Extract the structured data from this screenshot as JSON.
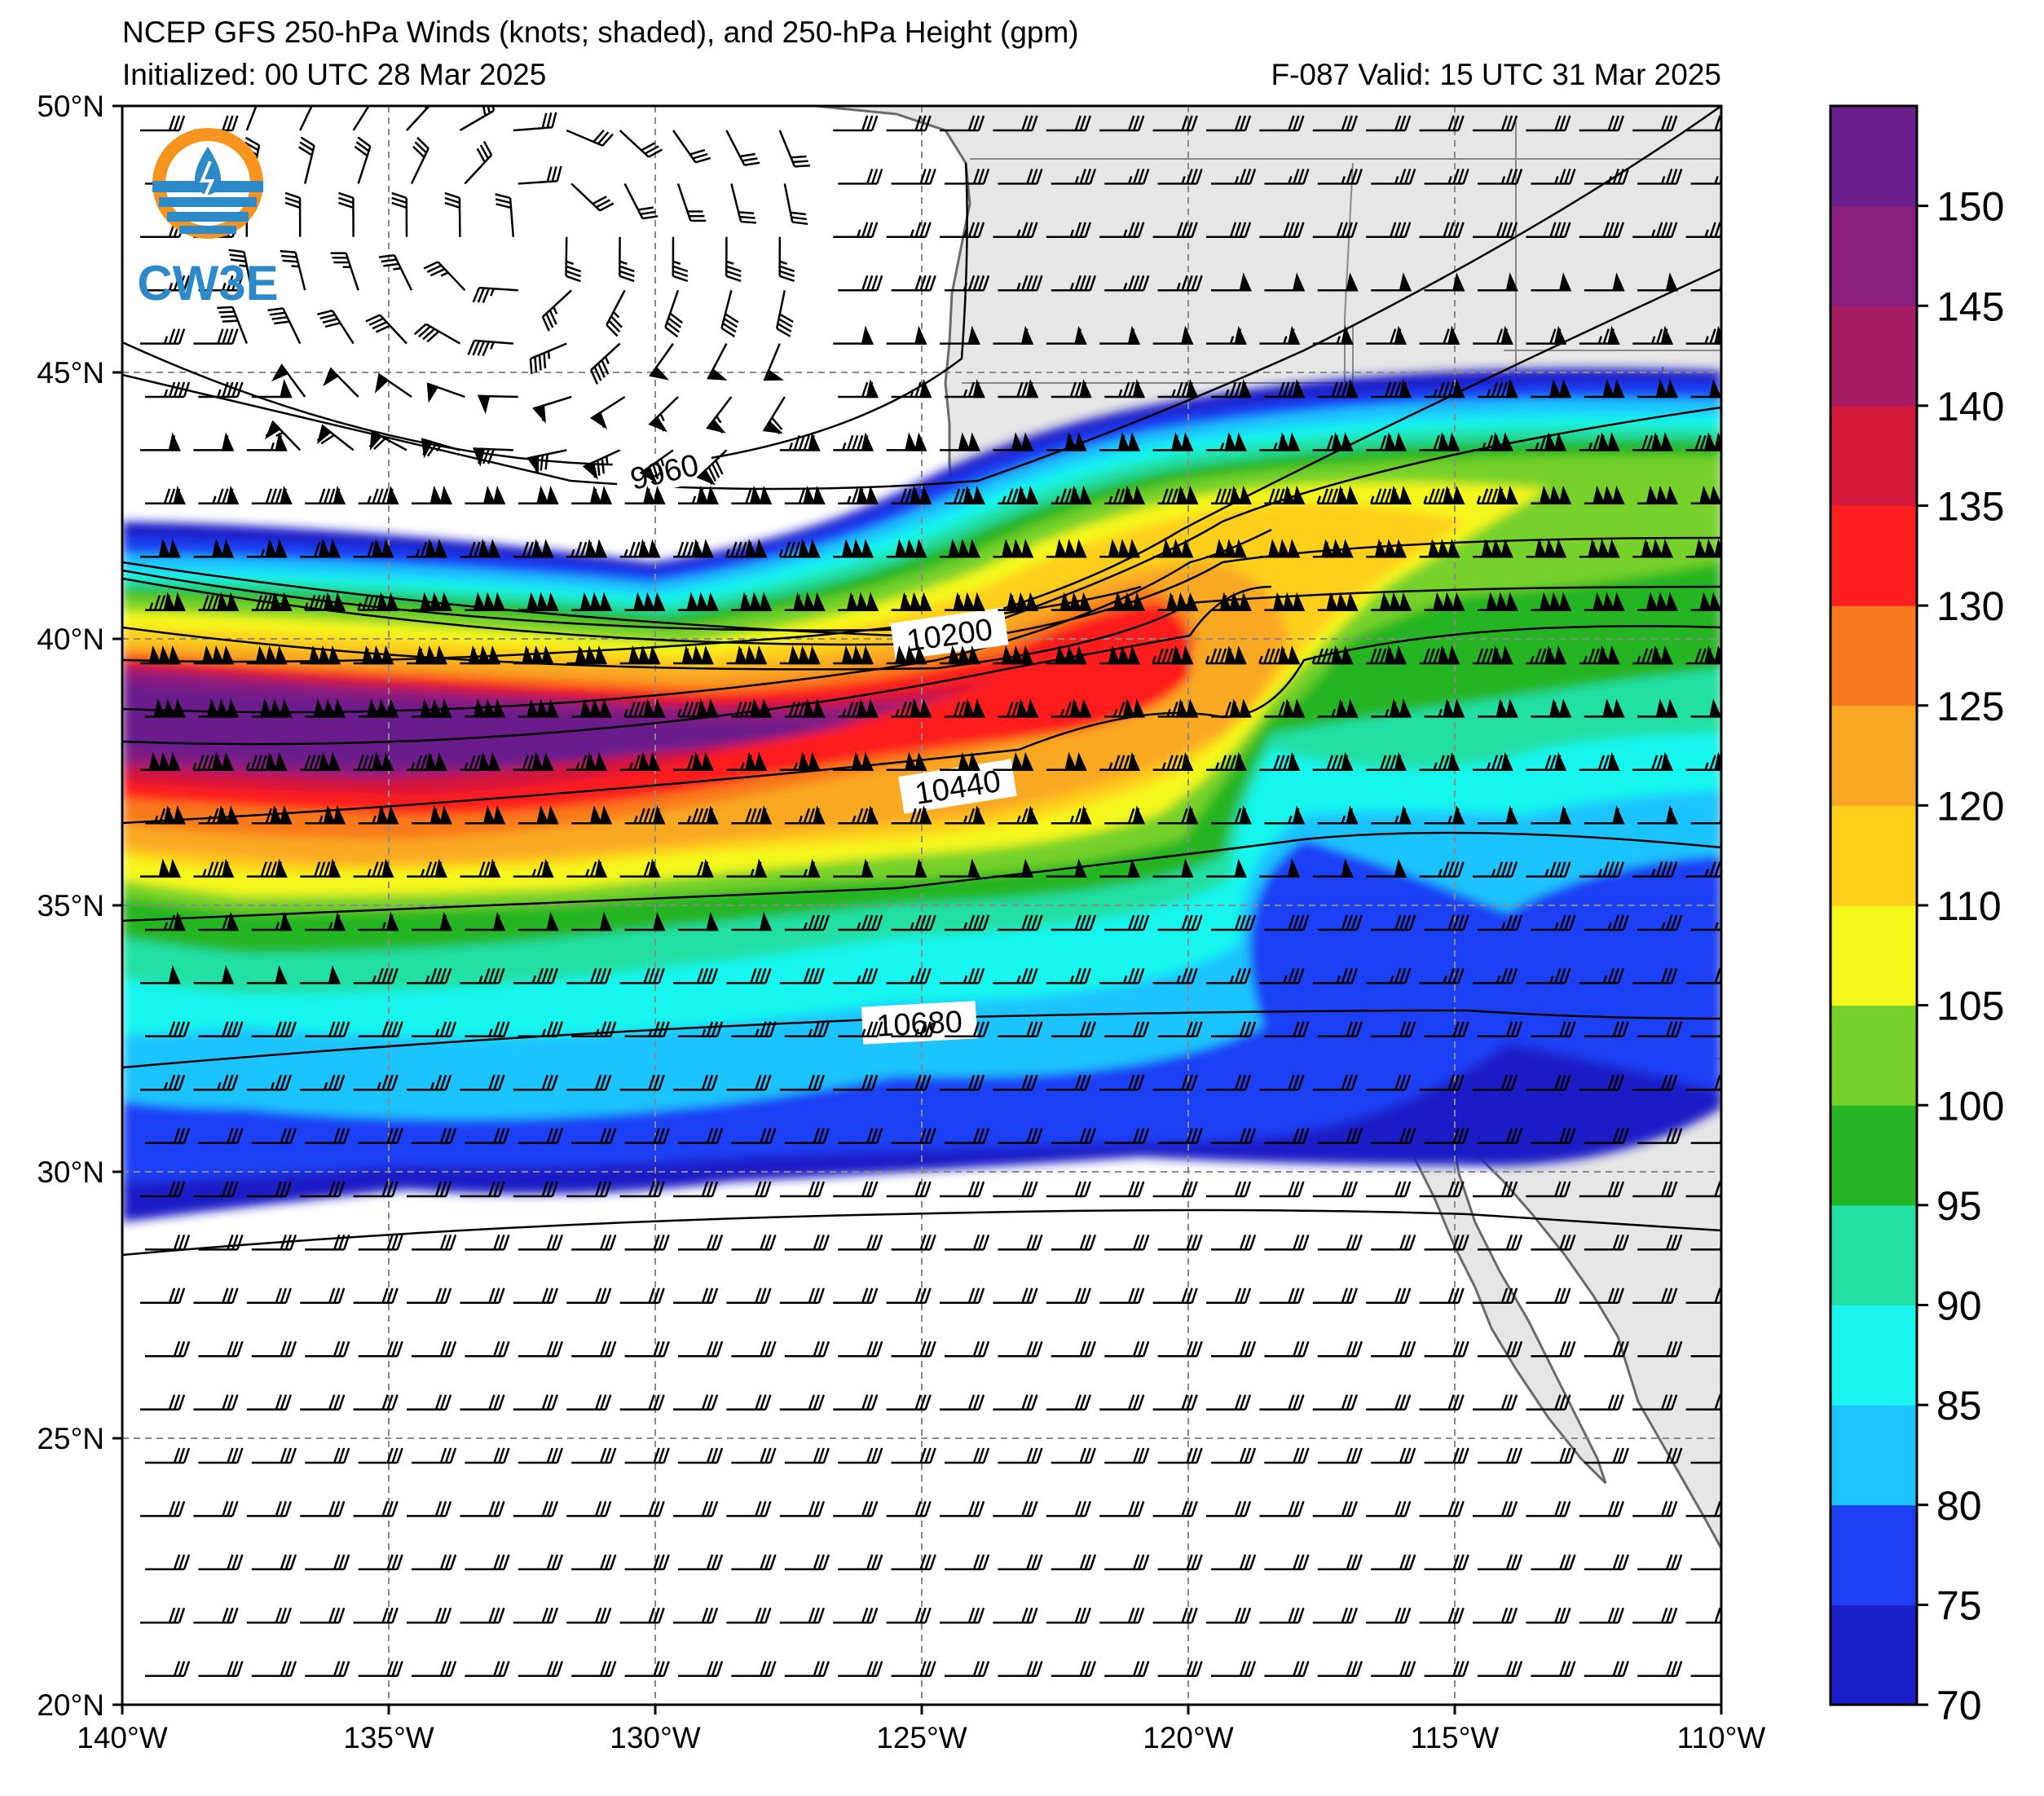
{
  "header": {
    "title": "NCEP GFS 250-hPa Winds (knots; shaded), and 250-hPa Height (gpm)",
    "initialized": "Initialized: 00 UTC 28 Mar 2025",
    "valid": "F-087  Valid: 15 UTC 31 Mar 2025"
  },
  "logo": {
    "text": "CW3E"
  },
  "map": {
    "lon_range": [
      -140,
      -110
    ],
    "lat_range": [
      20,
      50
    ],
    "lon_ticks": [
      "140°W",
      "135°W",
      "130°W",
      "125°W",
      "120°W",
      "115°W",
      "110°W"
    ],
    "lat_ticks": [
      "20°N",
      "25°N",
      "30°N",
      "35°N",
      "40°N",
      "45°N",
      "50°N"
    ],
    "grid": "dashed",
    "land_color": "#e6e6e6",
    "ocean_color": "#ffffff"
  },
  "height_contours": [
    {
      "label": "9960",
      "value": 9960
    },
    {
      "label": "10200",
      "value": 10200
    },
    {
      "label": "10440",
      "value": 10440
    },
    {
      "label": "10680",
      "value": 10680
    }
  ],
  "colorbar": {
    "ticks": [
      "70",
      "75",
      "80",
      "85",
      "90",
      "95",
      "100",
      "105",
      "110",
      "120",
      "125",
      "130",
      "135",
      "140",
      "145",
      "150"
    ],
    "bins": [
      {
        "from": 70,
        "to": 75,
        "color": "#1c1fc7"
      },
      {
        "from": 75,
        "to": 80,
        "color": "#1f3ff5"
      },
      {
        "from": 80,
        "to": 85,
        "color": "#1ec4ff"
      },
      {
        "from": 85,
        "to": 90,
        "color": "#19f5ee"
      },
      {
        "from": 90,
        "to": 95,
        "color": "#22e0a4"
      },
      {
        "from": 95,
        "to": 100,
        "color": "#25b524"
      },
      {
        "from": 100,
        "to": 105,
        "color": "#76d22a"
      },
      {
        "from": 105,
        "to": 110,
        "color": "#f4f71a"
      },
      {
        "from": 110,
        "to": 120,
        "color": "#ffcf1a"
      },
      {
        "from": 120,
        "to": 125,
        "color": "#f9a824"
      },
      {
        "from": 125,
        "to": 130,
        "color": "#f97a1f"
      },
      {
        "from": 130,
        "to": 135,
        "color": "#ff1f1f"
      },
      {
        "from": 135,
        "to": 140,
        "color": "#d4193a"
      },
      {
        "from": 140,
        "to": 145,
        "color": "#a71d63"
      },
      {
        "from": 145,
        "to": 150,
        "color": "#8a1f7f"
      },
      {
        "from": 150,
        "to": 155,
        "color": "#6b1f8c"
      }
    ]
  }
}
